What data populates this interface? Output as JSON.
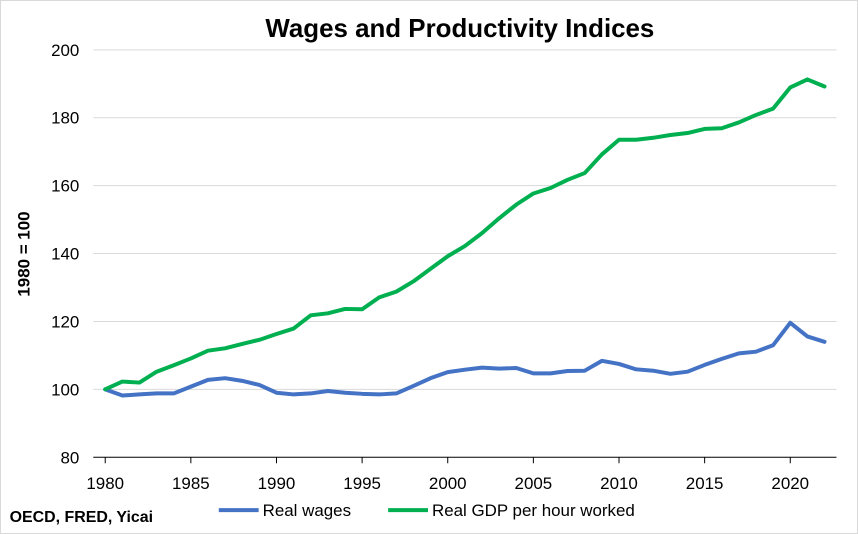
{
  "chart_data": {
    "type": "line",
    "title": "Wages and Productivity Indices",
    "ylabel": "1980 = 100",
    "xlabel": "",
    "source": "OECD, FRED, Yicai",
    "ylim": [
      80,
      200
    ],
    "yticks": [
      80,
      100,
      120,
      140,
      160,
      180,
      200
    ],
    "xlim": [
      1980,
      2022
    ],
    "xticks": [
      1980,
      1985,
      1990,
      1995,
      2000,
      2005,
      2010,
      2015,
      2020
    ],
    "grid": "horizontal",
    "legend_position": "bottom",
    "x": [
      1980,
      1981,
      1982,
      1983,
      1984,
      1985,
      1986,
      1987,
      1988,
      1989,
      1990,
      1991,
      1992,
      1993,
      1994,
      1995,
      1996,
      1997,
      1998,
      1999,
      2000,
      2001,
      2002,
      2003,
      2004,
      2005,
      2006,
      2007,
      2008,
      2009,
      2010,
      2011,
      2012,
      2013,
      2014,
      2015,
      2016,
      2017,
      2018,
      2019,
      2020,
      2021,
      2022
    ],
    "series": [
      {
        "name": "Real wages",
        "color": "#4472c4",
        "values": [
          100,
          98.2,
          98.5,
          98.8,
          98.8,
          100.8,
          102.8,
          103.3,
          102.5,
          101.3,
          99.0,
          98.5,
          98.8,
          99.5,
          99.0,
          98.7,
          98.5,
          98.8,
          101.0,
          103.3,
          105.1,
          105.8,
          106.4,
          106.1,
          106.3,
          104.7,
          104.7,
          105.4,
          105.5,
          108.4,
          107.5,
          105.9,
          105.5,
          104.6,
          105.2,
          107.2,
          109.0,
          110.6,
          111.1,
          113.0,
          119.6,
          115.6,
          114.0
        ]
      },
      {
        "name": "Real GDP per hour worked",
        "color": "#00b050",
        "values": [
          100,
          102.3,
          102.0,
          105.2,
          107.1,
          109.1,
          111.4,
          112.1,
          113.4,
          114.6,
          116.3,
          117.9,
          121.8,
          122.4,
          123.7,
          123.6,
          127.1,
          128.8,
          131.8,
          135.5,
          139.2,
          142.2,
          146.0,
          150.4,
          154.4,
          157.7,
          159.3,
          161.7,
          163.7,
          169.2,
          173.5,
          173.5,
          174.1,
          174.9,
          175.5,
          176.7,
          176.9,
          178.6,
          180.8,
          182.7,
          188.9,
          191.3,
          189.2
        ]
      }
    ]
  }
}
